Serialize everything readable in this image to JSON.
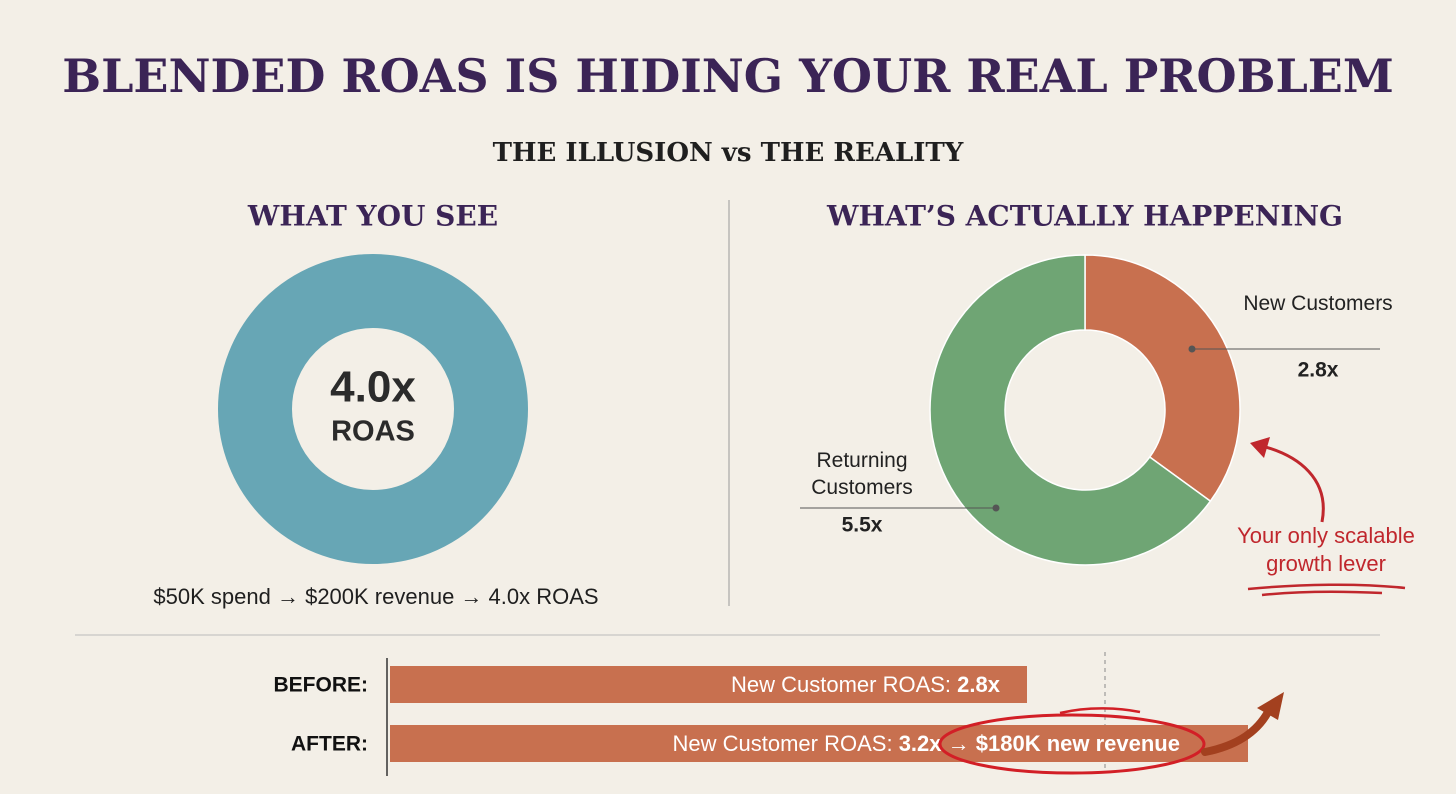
{
  "title": "BLENDED ROAS IS HIDING YOUR REAL PROBLEM",
  "subtitle": "THE ILLUSION vs THE REALITY",
  "left": {
    "heading": "WHAT YOU SEE",
    "ring_value": "4.0x",
    "ring_label": "ROAS",
    "color": "#67a6b5",
    "caption": "$50K spend → $200K revenue → 4.0x ROAS"
  },
  "right": {
    "heading": "WHAT’S ACTUALLY HAPPENING",
    "segments": [
      {
        "name": "New Customers",
        "roas": "2.8x",
        "share": 35,
        "color": "#c8704f"
      },
      {
        "name": "Returning Customers",
        "roas": "5.5x",
        "share": 65,
        "color": "#6fa574"
      }
    ],
    "callout": "Your only scalable growth lever"
  },
  "bars": [
    {
      "label": "BEFORE:",
      "text": "New Customer ROAS:",
      "value": "2.8x"
    },
    {
      "label": "AFTER:",
      "text": "New Customer ROAS:",
      "value": "3.2x",
      "arrow": "→",
      "highlight": "$180K new revenue"
    }
  ]
}
